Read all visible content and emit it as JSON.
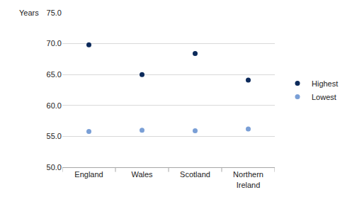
{
  "chart_data": {
    "type": "scatter",
    "ylabel": "Years",
    "categories": [
      "England",
      "Wales",
      "Scotland",
      "Northern Ireland"
    ],
    "series": [
      {
        "name": "Highest",
        "color": "#0c2a5b",
        "marker": "circle",
        "values": [
          69.8,
          65.0,
          68.4,
          64.1
        ]
      },
      {
        "name": "Lowest",
        "color": "#7a9fd6",
        "marker": "circle",
        "values": [
          55.8,
          56.0,
          55.9,
          56.2
        ]
      }
    ],
    "ylim": [
      50,
      75
    ],
    "yticks": [
      {
        "value": 50,
        "label": "50.0"
      },
      {
        "value": 55,
        "label": "55.0"
      },
      {
        "value": 60,
        "label": "60.0"
      },
      {
        "value": 65,
        "label": "65.0"
      },
      {
        "value": 70,
        "label": "70.0"
      },
      {
        "value": 75,
        "label": "75.0"
      }
    ],
    "grid": true,
    "legend": "right"
  }
}
